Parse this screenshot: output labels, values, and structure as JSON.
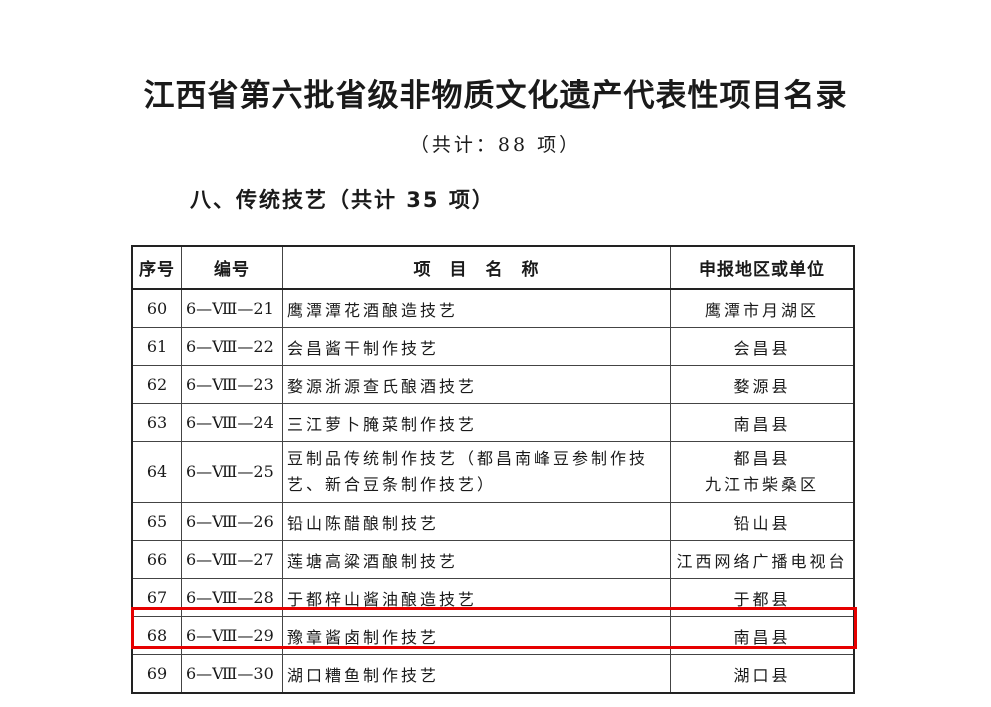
{
  "title": "江西省第六批省级非物质文化遗产代表性项目名录",
  "subtitle": "（共计：88 项）",
  "section": "八、传统技艺（共计 35 项）",
  "table": {
    "headers": [
      "序号",
      "编号",
      "项　目　名　称",
      "申报地区或单位"
    ],
    "rows": [
      {
        "idx": "60",
        "code": "6—Ⅷ—21",
        "name": "鹰潭潭花酒酿造技艺",
        "region": "鹰潭市月湖区"
      },
      {
        "idx": "61",
        "code": "6—Ⅷ—22",
        "name": "会昌酱干制作技艺",
        "region": "会昌县"
      },
      {
        "idx": "62",
        "code": "6—Ⅷ—23",
        "name": "婺源浙源查氏酿酒技艺",
        "region": "婺源县"
      },
      {
        "idx": "63",
        "code": "6—Ⅷ—24",
        "name": "三江萝卜腌菜制作技艺",
        "region": "南昌县"
      },
      {
        "idx": "64",
        "code": "6—Ⅷ—25",
        "name": "豆制品传统制作技艺（都昌南峰豆参制作技艺、新合豆条制作技艺）",
        "region": "都昌县 九江市柴桑区"
      },
      {
        "idx": "65",
        "code": "6—Ⅷ—26",
        "name": "铅山陈醋酿制技艺",
        "region": "铅山县"
      },
      {
        "idx": "66",
        "code": "6—Ⅷ—27",
        "name": "莲塘高粱酒酿制技艺",
        "region": "江西网络广播电视台"
      },
      {
        "idx": "67",
        "code": "6—Ⅷ—28",
        "name": "于都梓山酱油酿造技艺",
        "region": "于都县"
      },
      {
        "idx": "68",
        "code": "6—Ⅷ—29",
        "name": "豫章酱卤制作技艺",
        "region": "南昌县"
      },
      {
        "idx": "69",
        "code": "6—Ⅷ—30",
        "name": "湖口糟鱼制作技艺",
        "region": "湖口县"
      }
    ]
  },
  "highlight_color": "#e60000"
}
